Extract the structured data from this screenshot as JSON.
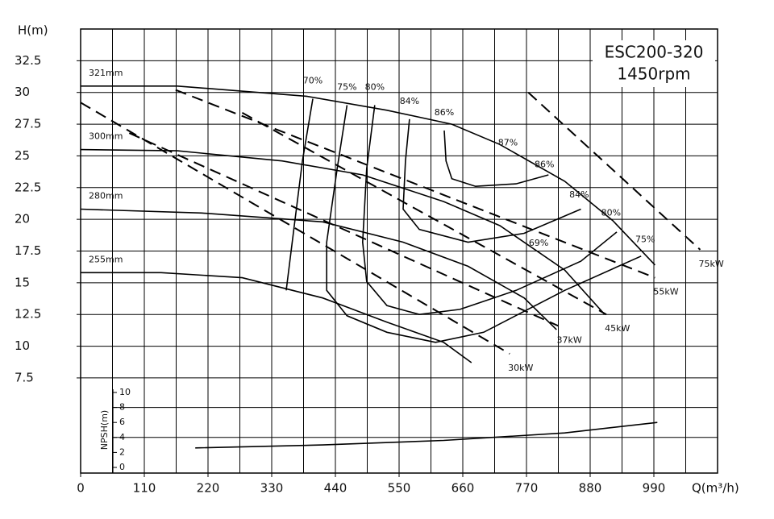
{
  "chart_data": {
    "type": "line",
    "title": "ESC200-320",
    "subtitle": "1450rpm",
    "x_label": "Q(m³/h)",
    "y_label": "H(m)",
    "y2_label": "NPSH(m)",
    "color": "#000000",
    "xlim": [
      0,
      1100
    ],
    "xticks": [
      0,
      110,
      220,
      330,
      440,
      550,
      660,
      770,
      880,
      990
    ],
    "xgrid": [
      55,
      165,
      275,
      385,
      495,
      605,
      715,
      825,
      935,
      1045
    ],
    "ylim": [
      0,
      35
    ],
    "yticks": [
      7.5,
      10,
      12.5,
      15,
      17.5,
      20,
      22.5,
      25,
      27.5,
      30,
      32.5
    ],
    "y2lim": [
      0,
      10
    ],
    "y2ticks": [
      0,
      2,
      4,
      6,
      8,
      10
    ],
    "y2grid": [
      4,
      8
    ],
    "head_curves": [
      {
        "name": "321mm",
        "x": [
          0,
          167,
          390,
          529,
          641,
          724,
          836,
          919,
          992
        ],
        "values": [
          30.5,
          30.5,
          29.7,
          28.6,
          27.5,
          25.9,
          23.0,
          19.9,
          16.4
        ]
      },
      {
        "name": "300mm",
        "x": [
          0,
          167,
          348,
          487,
          627,
          724,
          836,
          905
        ],
        "values": [
          25.5,
          25.4,
          24.6,
          23.5,
          21.4,
          19.5,
          16.0,
          12.5
        ]
      },
      {
        "name": "280mm",
        "x": [
          0,
          209,
          418,
          557,
          669,
          766,
          822
        ],
        "values": [
          20.8,
          20.5,
          19.8,
          18.2,
          16.3,
          13.8,
          11.3
        ]
      },
      {
        "name": "255mm",
        "x": [
          0,
          139,
          279,
          418,
          529,
          627,
          675
        ],
        "values": [
          15.8,
          15.8,
          15.4,
          13.8,
          11.9,
          10.3,
          8.7
        ]
      }
    ],
    "efficiency_curves": [
      {
        "name": "70%",
        "x": [
          401,
          383,
          369,
          355
        ],
        "values": [
          29.5,
          24.6,
          19.5,
          14.4
        ]
      },
      {
        "name": "75%",
        "x": [
          460,
          443,
          425,
          425,
          460,
          529,
          613,
          696,
          836,
          968
        ],
        "values": [
          29.0,
          24.0,
          18.2,
          14.4,
          12.4,
          11.1,
          10.3,
          11.1,
          14.4,
          17.1
        ]
      },
      {
        "name": "80%",
        "x": [
          508,
          494,
          487,
          494,
          529,
          585,
          655,
          752,
          864,
          926
        ],
        "values": [
          29.0,
          24.0,
          18.2,
          15.1,
          13.2,
          12.5,
          12.9,
          14.4,
          16.7,
          19.0
        ]
      },
      {
        "name": "84%",
        "x": [
          568,
          561,
          557,
          585,
          669,
          766,
          864
        ],
        "values": [
          27.9,
          24.6,
          20.8,
          19.2,
          18.2,
          18.9,
          20.8
        ]
      },
      {
        "name": "86%",
        "x": [
          628,
          631,
          641,
          682,
          752,
          808
        ],
        "values": [
          27.0,
          24.6,
          23.2,
          22.6,
          22.8,
          23.5
        ]
      }
    ],
    "efficiency_labels": [
      {
        "text": "87%",
        "x": 738,
        "y": 26.0
      },
      {
        "text": "86%",
        "x": 801,
        "y": 24.3
      },
      {
        "text": "84%",
        "x": 861,
        "y": 21.9
      },
      {
        "text": "80%",
        "x": 916,
        "y": 20.5
      },
      {
        "text": "75%",
        "x": 975,
        "y": 18.4
      },
      {
        "text": "69%",
        "x": 791,
        "y": 18.1
      }
    ],
    "power_lines": [
      {
        "name": "75kW",
        "x": [
          773,
          1070
        ],
        "values": [
          30.0,
          17.6
        ]
      },
      {
        "name": "55kW",
        "x": [
          164,
          992
        ],
        "values": [
          30.2,
          15.4
        ]
      },
      {
        "name": "45kW",
        "x": [
          279,
          908
        ],
        "values": [
          28.4,
          12.5
        ]
      },
      {
        "name": "37kW",
        "x": [
          84,
          825
        ],
        "values": [
          26.8,
          11.6
        ]
      },
      {
        "name": "30kW",
        "x": [
          0,
          741
        ],
        "values": [
          29.2,
          9.4
        ]
      }
    ],
    "npsh_curve": {
      "axis": "y2",
      "x": [
        198,
        418,
        627,
        836,
        996
      ],
      "values": [
        2.6,
        3.0,
        3.6,
        4.6,
        6.0
      ]
    }
  }
}
